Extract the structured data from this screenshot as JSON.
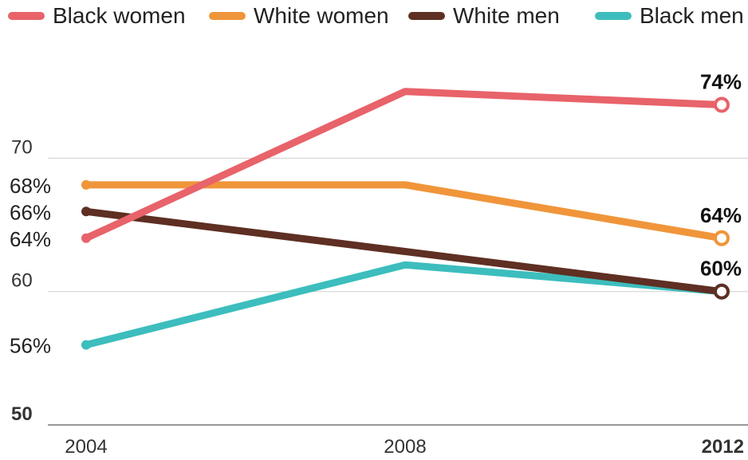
{
  "chart_data": {
    "type": "line",
    "x": [
      "2004",
      "2008",
      "2012"
    ],
    "x_tick_labels": [
      "2004",
      "2008",
      "2012"
    ],
    "y_ticks": [
      50,
      60,
      70
    ],
    "ylim": [
      50,
      76
    ],
    "grid": true,
    "legend_placement": "top",
    "series": [
      {
        "name": "Black women",
        "color": "#e8636a",
        "values": [
          64,
          75,
          74
        ],
        "start_label": "64%",
        "end_label": "74%"
      },
      {
        "name": "White women",
        "color": "#f0953a",
        "values": [
          68,
          68,
          64
        ],
        "start_label": "68%",
        "end_label": "64%"
      },
      {
        "name": "White men",
        "color": "#5e2f22",
        "values": [
          66,
          63,
          60
        ],
        "start_label": "66%",
        "end_label": ""
      },
      {
        "name": "Black men",
        "color": "#3dbdbd",
        "values": [
          56,
          62,
          60
        ],
        "start_label": "56%",
        "end_label": "60%"
      }
    ]
  }
}
